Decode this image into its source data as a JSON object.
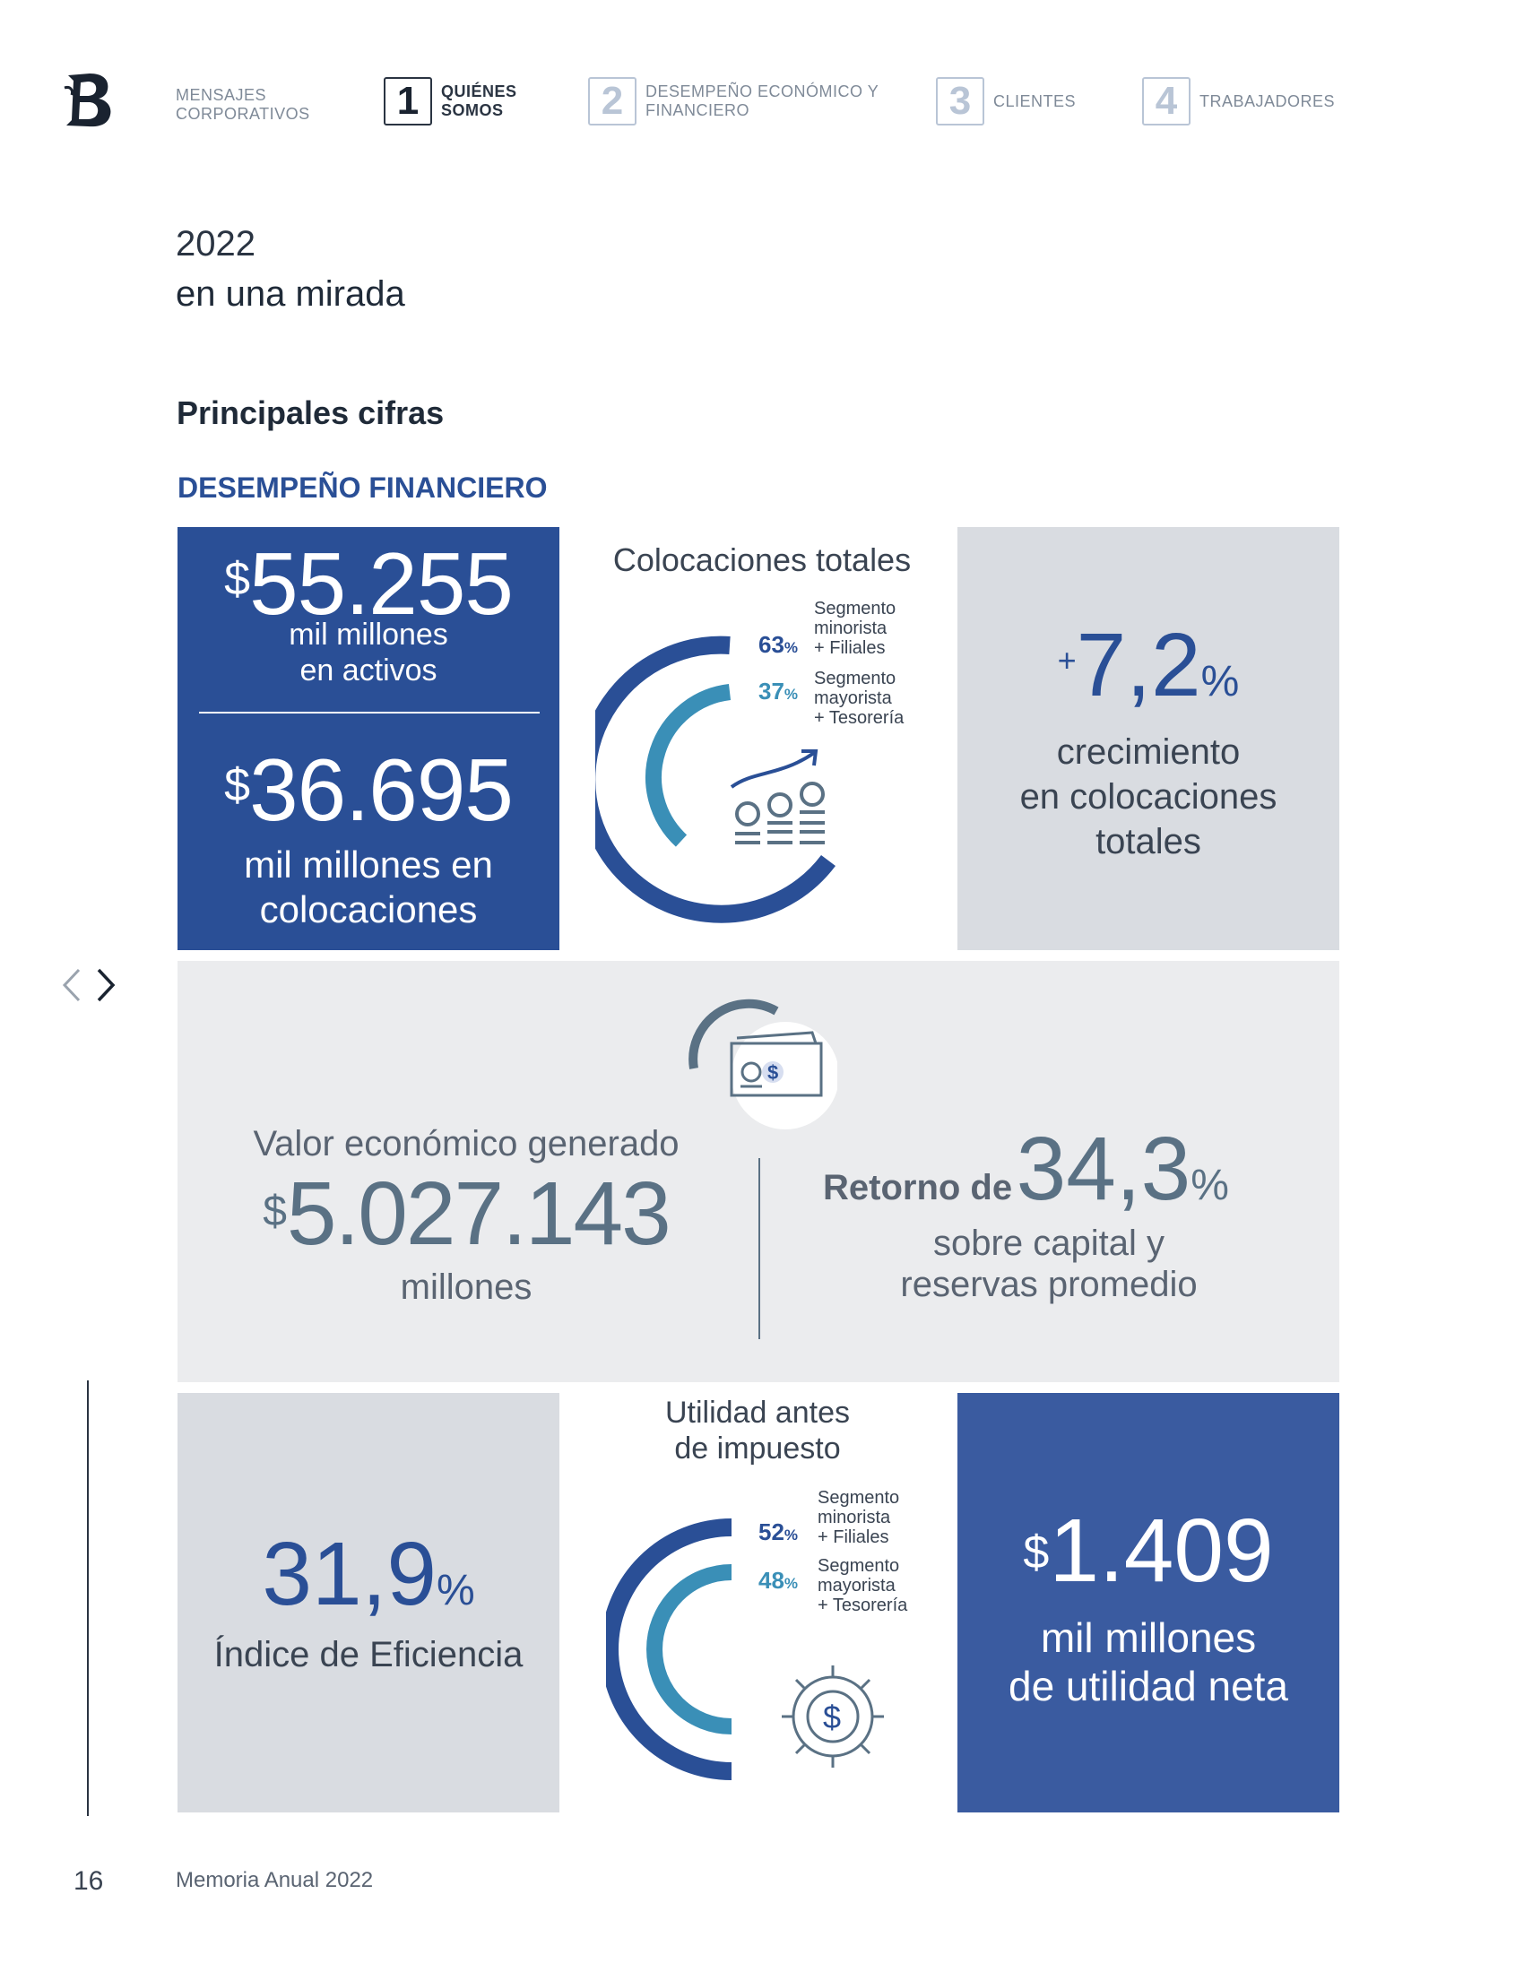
{
  "nav": {
    "item0": "MENSAJES CORPORATIVOS",
    "item1_num": "1",
    "item1": "QUIÉNES SOMOS",
    "item2_num": "2",
    "item2": "DESEMPEÑO ECONÓMICO Y FINANCIERO",
    "item3_num": "3",
    "item3": "CLIENTES",
    "item4_num": "4",
    "item4": "TRABAJADORES"
  },
  "heading": {
    "year": "2022",
    "subtitle": "en una mirada",
    "principales": "Principales cifras",
    "section": "DESEMPEÑO FINANCIERO"
  },
  "activos": {
    "dollar": "$",
    "value": "55.255",
    "line1": "mil millones",
    "line2": "en activos"
  },
  "colocaciones": {
    "dollar": "$",
    "value": "36.695",
    "line1": "mil millones en",
    "line2": "colocaciones"
  },
  "colocaciones_totales": {
    "title": "Colocaciones totales",
    "seg1_pct": "63",
    "seg1_label": [
      "Segmento",
      "minorista",
      "+ Filiales"
    ],
    "seg2_pct": "37",
    "seg2_label": [
      "Segmento",
      "mayorista",
      "+ Tesorería"
    ]
  },
  "crecimiento": {
    "plus": "+",
    "value": "7,2",
    "pct": "%",
    "line1": "crecimiento",
    "line2": "en colocaciones",
    "line3": "totales"
  },
  "valor_economico": {
    "label": "Valor económico generado",
    "dollar": "$",
    "value": "5.027.143",
    "unit": "millones"
  },
  "retorno": {
    "prefix": "Retorno de",
    "value": "34,3",
    "pct": "%",
    "line1": "sobre capital y",
    "line2": "reservas promedio"
  },
  "eficiencia": {
    "value": "31,9",
    "pct": "%",
    "label": "Índice de Eficiencia"
  },
  "utilidad_antes": {
    "title1": "Utilidad antes",
    "title2": "de impuesto",
    "seg1_pct": "52",
    "seg1_label": [
      "Segmento",
      "minorista",
      "+ Filiales"
    ],
    "seg2_pct": "48",
    "seg2_label": [
      "Segmento",
      "mayorista",
      "+ Tesorería"
    ]
  },
  "utilidad_neta": {
    "dollar": "$",
    "value": "1.409",
    "line1": "mil millones",
    "line2": "de utilidad neta"
  },
  "colors": {
    "dark_blue": "#2a4f96",
    "mid_blue": "#3a8fb7",
    "slate": "#5a7184",
    "gray_panel": "#d9dce1",
    "light_panel": "#ebecee"
  },
  "footer": {
    "page": "16",
    "title": "Memoria Anual 2022"
  }
}
